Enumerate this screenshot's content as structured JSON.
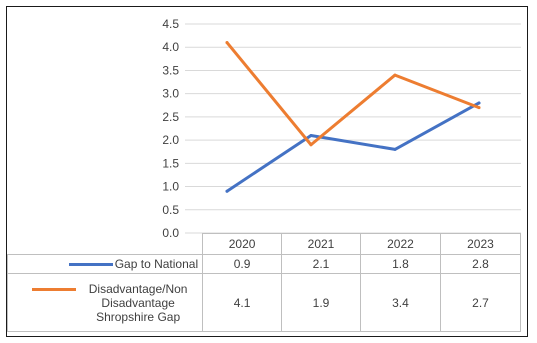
{
  "chart_data": {
    "type": "line",
    "categories": [
      "2020",
      "2021",
      "2022",
      "2023"
    ],
    "series": [
      {
        "name": "Gap to National",
        "values": [
          0.9,
          2.1,
          1.8,
          2.8
        ],
        "labels": [
          "0.9",
          "2.1",
          "1.8",
          "2.8"
        ],
        "color": "#4472C4"
      },
      {
        "name": "Disadvantage/Non Disadvantage Shropshire Gap",
        "values": [
          4.1,
          1.9,
          3.4,
          2.7
        ],
        "labels": [
          "4.1",
          "1.9",
          "3.4",
          "2.7"
        ],
        "color": "#ED7D31"
      }
    ],
    "y_ticks": [
      "0.0",
      "0.5",
      "1.0",
      "1.5",
      "2.0",
      "2.5",
      "3.0",
      "3.5",
      "4.0",
      "4.5"
    ],
    "ylim": [
      0,
      4.5
    ],
    "grid": "horizontal",
    "legend": "data-table"
  }
}
